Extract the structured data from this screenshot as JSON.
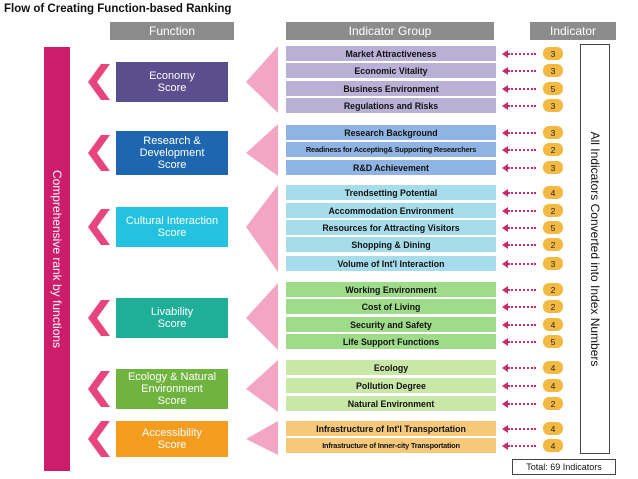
{
  "title": "Flow of Creating Function-based Ranking",
  "headers": {
    "function": "Function",
    "indicator_group": "Indicator Group",
    "indicator": "Indicator"
  },
  "left_label": "Comprehensive rank by functions",
  "right_label": "All Indicators Converted into Index Numbers",
  "total": "Total: 69 Indicators",
  "functions": [
    {
      "label": "Economy\nScore",
      "color": "#5b4e8e"
    },
    {
      "label": "Research &\nDevelopment\nScore",
      "color": "#1e66b0"
    },
    {
      "label": "Cultural Interaction\nScore",
      "color": "#22c2e0"
    },
    {
      "label": "Livability\nScore",
      "color": "#1fae98"
    },
    {
      "label": "Ecology & Natural\nEnvironment\nScore",
      "color": "#6fb43f"
    },
    {
      "label": "Accessibility\nScore",
      "color": "#f39c1e"
    }
  ],
  "indicator_groups": [
    {
      "label": "Market Attractiveness",
      "count": "3",
      "color": "#b9b0d6"
    },
    {
      "label": "Economic Vitality",
      "count": "3",
      "color": "#b9b0d6"
    },
    {
      "label": "Business Environment",
      "count": "5",
      "color": "#b9b0d6"
    },
    {
      "label": "Regulations and Risks",
      "count": "3",
      "color": "#b9b0d6"
    },
    {
      "label": "Research Background",
      "count": "3",
      "color": "#8fb4e3"
    },
    {
      "label": "Readiness for Accepting& Supporting Researchers",
      "count": "2",
      "color": "#8fb4e3"
    },
    {
      "label": "R&D Achievement",
      "count": "3",
      "color": "#8fb4e3"
    },
    {
      "label": "Trendsetting Potential",
      "count": "4",
      "color": "#a7dcea"
    },
    {
      "label": "Accommodation Environment",
      "count": "2",
      "color": "#a7dcea"
    },
    {
      "label": "Resources for Attracting Visitors",
      "count": "5",
      "color": "#a7dcea"
    },
    {
      "label": "Shopping & Dining",
      "count": "2",
      "color": "#a7dcea"
    },
    {
      "label": "Volume of Int'l Interaction",
      "count": "3",
      "color": "#a7dcea"
    },
    {
      "label": "Working Environment",
      "count": "2",
      "color": "#9fdc8a"
    },
    {
      "label": "Cost of Living",
      "count": "2",
      "color": "#9fdc8a"
    },
    {
      "label": "Security and Safety",
      "count": "4",
      "color": "#9fdc8a"
    },
    {
      "label": "Life Support Functions",
      "count": "5",
      "color": "#9fdc8a"
    },
    {
      "label": "Ecology",
      "count": "4",
      "color": "#c9e7a6"
    },
    {
      "label": "Pollution Degree",
      "count": "4",
      "color": "#c9e7a6"
    },
    {
      "label": "Natural Environment",
      "count": "2",
      "color": "#c9e7a6"
    },
    {
      "label": "Infrastructure of Int'l Transportation",
      "count": "4",
      "color": "#f6c97a"
    },
    {
      "label": "Infrastructure of Inner-city Transportation",
      "count": "4",
      "color": "#f6c97a"
    }
  ],
  "colors": {
    "left_bar": "#cc1d6b",
    "wedge": "#f3a6c3",
    "chevron": "#e8457f",
    "arrow": "#c8286e",
    "count_badge": "#f4b942",
    "header": "#8c8c8c"
  }
}
